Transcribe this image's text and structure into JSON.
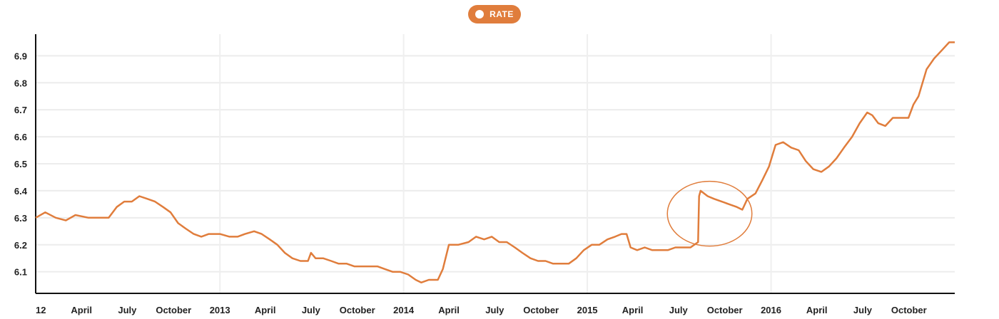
{
  "legend": {
    "label": "RATE",
    "color": "#e07d3c"
  },
  "chart_data": {
    "type": "line",
    "title": "",
    "xlabel": "",
    "ylabel": "",
    "ylim": [
      6.02,
      6.98
    ],
    "y_ticks": [
      6.1,
      6.2,
      6.3,
      6.4,
      6.5,
      6.6,
      6.7,
      6.8,
      6.9
    ],
    "x_range": [
      "2012-01-01",
      "2016-12-31"
    ],
    "x_ticks": [
      {
        "label": "12",
        "date": "2012-01-01"
      },
      {
        "label": "April",
        "date": "2012-04-01"
      },
      {
        "label": "July",
        "date": "2012-07-01"
      },
      {
        "label": "October",
        "date": "2012-10-01"
      },
      {
        "label": "2013",
        "date": "2013-01-01"
      },
      {
        "label": "April",
        "date": "2013-04-01"
      },
      {
        "label": "July",
        "date": "2013-07-01"
      },
      {
        "label": "October",
        "date": "2013-10-01"
      },
      {
        "label": "2014",
        "date": "2014-01-01"
      },
      {
        "label": "April",
        "date": "2014-04-01"
      },
      {
        "label": "July",
        "date": "2014-07-01"
      },
      {
        "label": "October",
        "date": "2014-10-01"
      },
      {
        "label": "2015",
        "date": "2015-01-01"
      },
      {
        "label": "April",
        "date": "2015-04-01"
      },
      {
        "label": "July",
        "date": "2015-07-01"
      },
      {
        "label": "October",
        "date": "2015-10-01"
      },
      {
        "label": "2016",
        "date": "2016-01-01"
      },
      {
        "label": "April",
        "date": "2016-04-01"
      },
      {
        "label": "July",
        "date": "2016-07-01"
      },
      {
        "label": "October",
        "date": "2016-10-01"
      }
    ],
    "grid": true,
    "legend_position": "top-center",
    "series": [
      {
        "name": "RATE",
        "color": "#e07d3c",
        "points": [
          [
            "2012-01-01",
            6.3
          ],
          [
            "2012-01-20",
            6.32
          ],
          [
            "2012-02-10",
            6.3
          ],
          [
            "2012-03-01",
            6.29
          ],
          [
            "2012-03-20",
            6.31
          ],
          [
            "2012-04-15",
            6.3
          ],
          [
            "2012-05-05",
            6.3
          ],
          [
            "2012-05-25",
            6.3
          ],
          [
            "2012-06-10",
            6.34
          ],
          [
            "2012-06-25",
            6.36
          ],
          [
            "2012-07-10",
            6.36
          ],
          [
            "2012-07-25",
            6.38
          ],
          [
            "2012-08-10",
            6.37
          ],
          [
            "2012-08-25",
            6.36
          ],
          [
            "2012-09-10",
            6.34
          ],
          [
            "2012-09-25",
            6.32
          ],
          [
            "2012-10-10",
            6.28
          ],
          [
            "2012-10-25",
            6.26
          ],
          [
            "2012-11-10",
            6.24
          ],
          [
            "2012-11-25",
            6.23
          ],
          [
            "2012-12-10",
            6.24
          ],
          [
            "2013-01-01",
            6.24
          ],
          [
            "2013-01-20",
            6.23
          ],
          [
            "2013-02-05",
            6.23
          ],
          [
            "2013-02-20",
            6.24
          ],
          [
            "2013-03-10",
            6.25
          ],
          [
            "2013-03-25",
            6.24
          ],
          [
            "2013-04-10",
            6.22
          ],
          [
            "2013-04-25",
            6.2
          ],
          [
            "2013-05-10",
            6.17
          ],
          [
            "2013-05-25",
            6.15
          ],
          [
            "2013-06-10",
            6.14
          ],
          [
            "2013-06-25",
            6.14
          ],
          [
            "2013-07-01",
            6.17
          ],
          [
            "2013-07-10",
            6.15
          ],
          [
            "2013-07-25",
            6.15
          ],
          [
            "2013-08-10",
            6.14
          ],
          [
            "2013-08-25",
            6.13
          ],
          [
            "2013-09-10",
            6.13
          ],
          [
            "2013-09-25",
            6.12
          ],
          [
            "2013-10-10",
            6.12
          ],
          [
            "2013-10-25",
            6.12
          ],
          [
            "2013-11-10",
            6.12
          ],
          [
            "2013-11-25",
            6.11
          ],
          [
            "2013-12-10",
            6.1
          ],
          [
            "2013-12-25",
            6.1
          ],
          [
            "2014-01-10",
            6.09
          ],
          [
            "2014-01-25",
            6.07
          ],
          [
            "2014-02-05",
            6.06
          ],
          [
            "2014-02-20",
            6.07
          ],
          [
            "2014-03-10",
            6.07
          ],
          [
            "2014-03-20",
            6.11
          ],
          [
            "2014-04-01",
            6.2
          ],
          [
            "2014-04-20",
            6.2
          ],
          [
            "2014-05-10",
            6.21
          ],
          [
            "2014-05-25",
            6.23
          ],
          [
            "2014-06-10",
            6.22
          ],
          [
            "2014-06-25",
            6.23
          ],
          [
            "2014-07-10",
            6.21
          ],
          [
            "2014-07-25",
            6.21
          ],
          [
            "2014-08-10",
            6.19
          ],
          [
            "2014-08-25",
            6.17
          ],
          [
            "2014-09-10",
            6.15
          ],
          [
            "2014-09-25",
            6.14
          ],
          [
            "2014-10-10",
            6.14
          ],
          [
            "2014-10-25",
            6.13
          ],
          [
            "2014-11-10",
            6.13
          ],
          [
            "2014-11-25",
            6.13
          ],
          [
            "2014-12-10",
            6.15
          ],
          [
            "2014-12-25",
            6.18
          ],
          [
            "2015-01-10",
            6.2
          ],
          [
            "2015-01-25",
            6.2
          ],
          [
            "2015-02-10",
            6.22
          ],
          [
            "2015-02-25",
            6.23
          ],
          [
            "2015-03-10",
            6.24
          ],
          [
            "2015-03-20",
            6.24
          ],
          [
            "2015-03-28",
            6.19
          ],
          [
            "2015-04-10",
            6.18
          ],
          [
            "2015-04-25",
            6.19
          ],
          [
            "2015-05-10",
            6.18
          ],
          [
            "2015-05-25",
            6.18
          ],
          [
            "2015-06-10",
            6.18
          ],
          [
            "2015-06-25",
            6.19
          ],
          [
            "2015-07-10",
            6.19
          ],
          [
            "2015-07-25",
            6.19
          ],
          [
            "2015-08-09",
            6.21
          ],
          [
            "2015-08-11",
            6.38
          ],
          [
            "2015-08-14",
            6.4
          ],
          [
            "2015-08-28",
            6.38
          ],
          [
            "2015-09-10",
            6.37
          ],
          [
            "2015-09-25",
            6.36
          ],
          [
            "2015-10-10",
            6.35
          ],
          [
            "2015-10-25",
            6.34
          ],
          [
            "2015-11-05",
            6.33
          ],
          [
            "2015-11-15",
            6.37
          ],
          [
            "2015-12-01",
            6.39
          ],
          [
            "2015-12-15",
            6.44
          ],
          [
            "2015-12-28",
            6.49
          ],
          [
            "2016-01-10",
            6.57
          ],
          [
            "2016-01-25",
            6.58
          ],
          [
            "2016-02-10",
            6.56
          ],
          [
            "2016-02-25",
            6.55
          ],
          [
            "2016-03-10",
            6.51
          ],
          [
            "2016-03-25",
            6.48
          ],
          [
            "2016-04-10",
            6.47
          ],
          [
            "2016-04-25",
            6.49
          ],
          [
            "2016-05-10",
            6.52
          ],
          [
            "2016-05-25",
            6.56
          ],
          [
            "2016-06-10",
            6.6
          ],
          [
            "2016-06-25",
            6.65
          ],
          [
            "2016-07-10",
            6.69
          ],
          [
            "2016-07-20",
            6.68
          ],
          [
            "2016-08-01",
            6.65
          ],
          [
            "2016-08-15",
            6.64
          ],
          [
            "2016-08-30",
            6.67
          ],
          [
            "2016-09-15",
            6.67
          ],
          [
            "2016-09-30",
            6.67
          ],
          [
            "2016-10-10",
            6.72
          ],
          [
            "2016-10-20",
            6.75
          ],
          [
            "2016-11-05",
            6.85
          ],
          [
            "2016-11-20",
            6.89
          ],
          [
            "2016-12-05",
            6.92
          ],
          [
            "2016-12-20",
            6.95
          ],
          [
            "2016-12-31",
            6.95
          ]
        ]
      }
    ],
    "annotations": [
      {
        "type": "ellipse",
        "center": [
          "2015-09-01",
          6.315
        ],
        "x_span": [
          "2015-06-10",
          "2015-11-25"
        ],
        "y_span": [
          6.205,
          6.445
        ],
        "color": "#e07d3c"
      }
    ]
  }
}
